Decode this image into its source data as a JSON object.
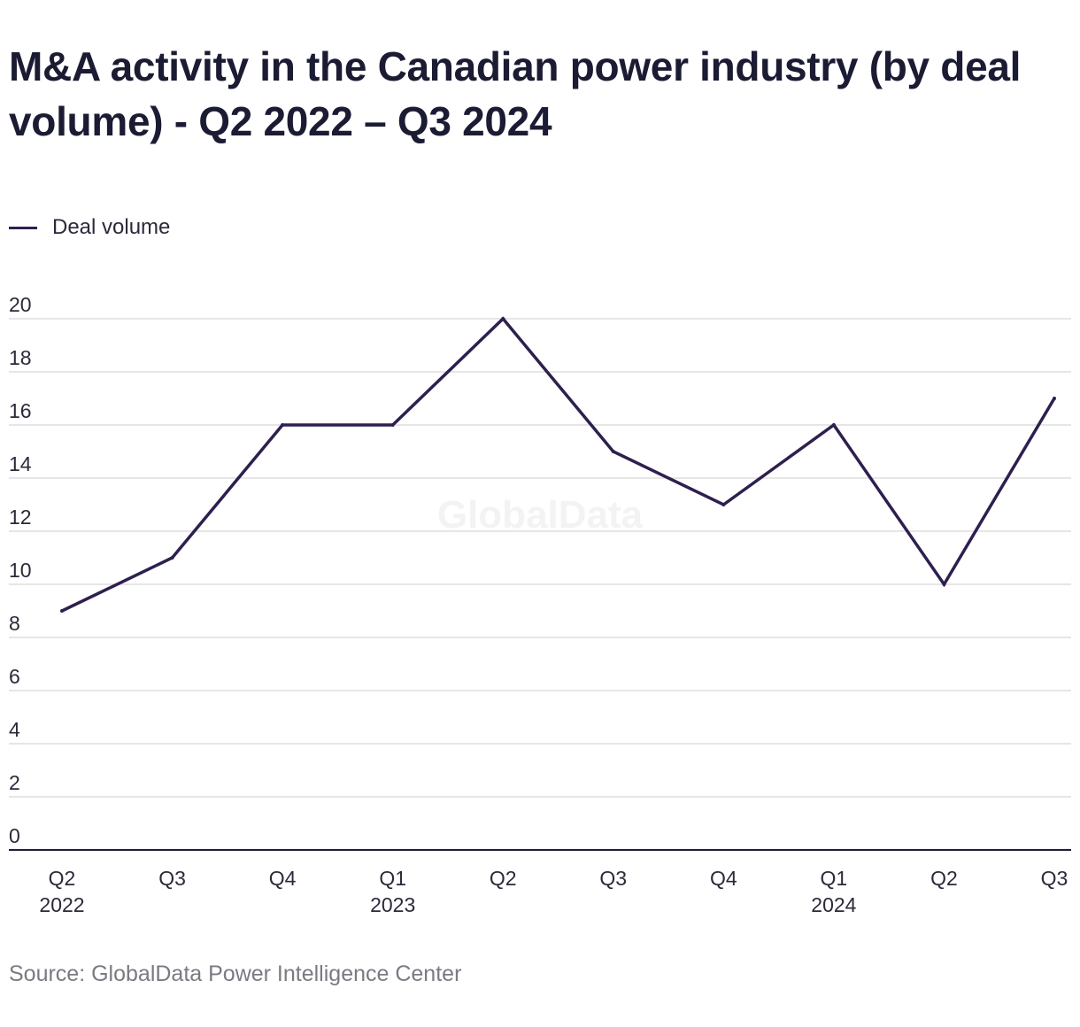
{
  "source": "Source: GlobalData Power Intelligence Center",
  "watermark": "GlobalData",
  "colors": {
    "line": "#2e1f4f",
    "grid": "#dddddd",
    "axis": "#1d1d35",
    "text": "#2a2a3a"
  },
  "chart_data": {
    "type": "line",
    "title": "M&A activity in the Canadian power industry (by deal volume) - Q2 2022 – Q3 2024",
    "xlabel": "",
    "ylabel": "",
    "ylim": [
      0,
      20
    ],
    "yticks": [
      "0",
      "2",
      "4",
      "6",
      "8",
      "10",
      "12",
      "14",
      "16",
      "18",
      "20"
    ],
    "grid": true,
    "legend_position": "top-left",
    "categories": [
      {
        "quarter": "Q2",
        "year": "2022"
      },
      {
        "quarter": "Q3",
        "year": ""
      },
      {
        "quarter": "Q4",
        "year": ""
      },
      {
        "quarter": "Q1",
        "year": "2023"
      },
      {
        "quarter": "Q2",
        "year": ""
      },
      {
        "quarter": "Q3",
        "year": ""
      },
      {
        "quarter": "Q4",
        "year": ""
      },
      {
        "quarter": "Q1",
        "year": "2024"
      },
      {
        "quarter": "Q2",
        "year": ""
      },
      {
        "quarter": "Q3",
        "year": ""
      }
    ],
    "series": [
      {
        "name": "Deal volume",
        "values": [
          9,
          11,
          16,
          16,
          20,
          15,
          13,
          16,
          10,
          17
        ]
      }
    ]
  }
}
